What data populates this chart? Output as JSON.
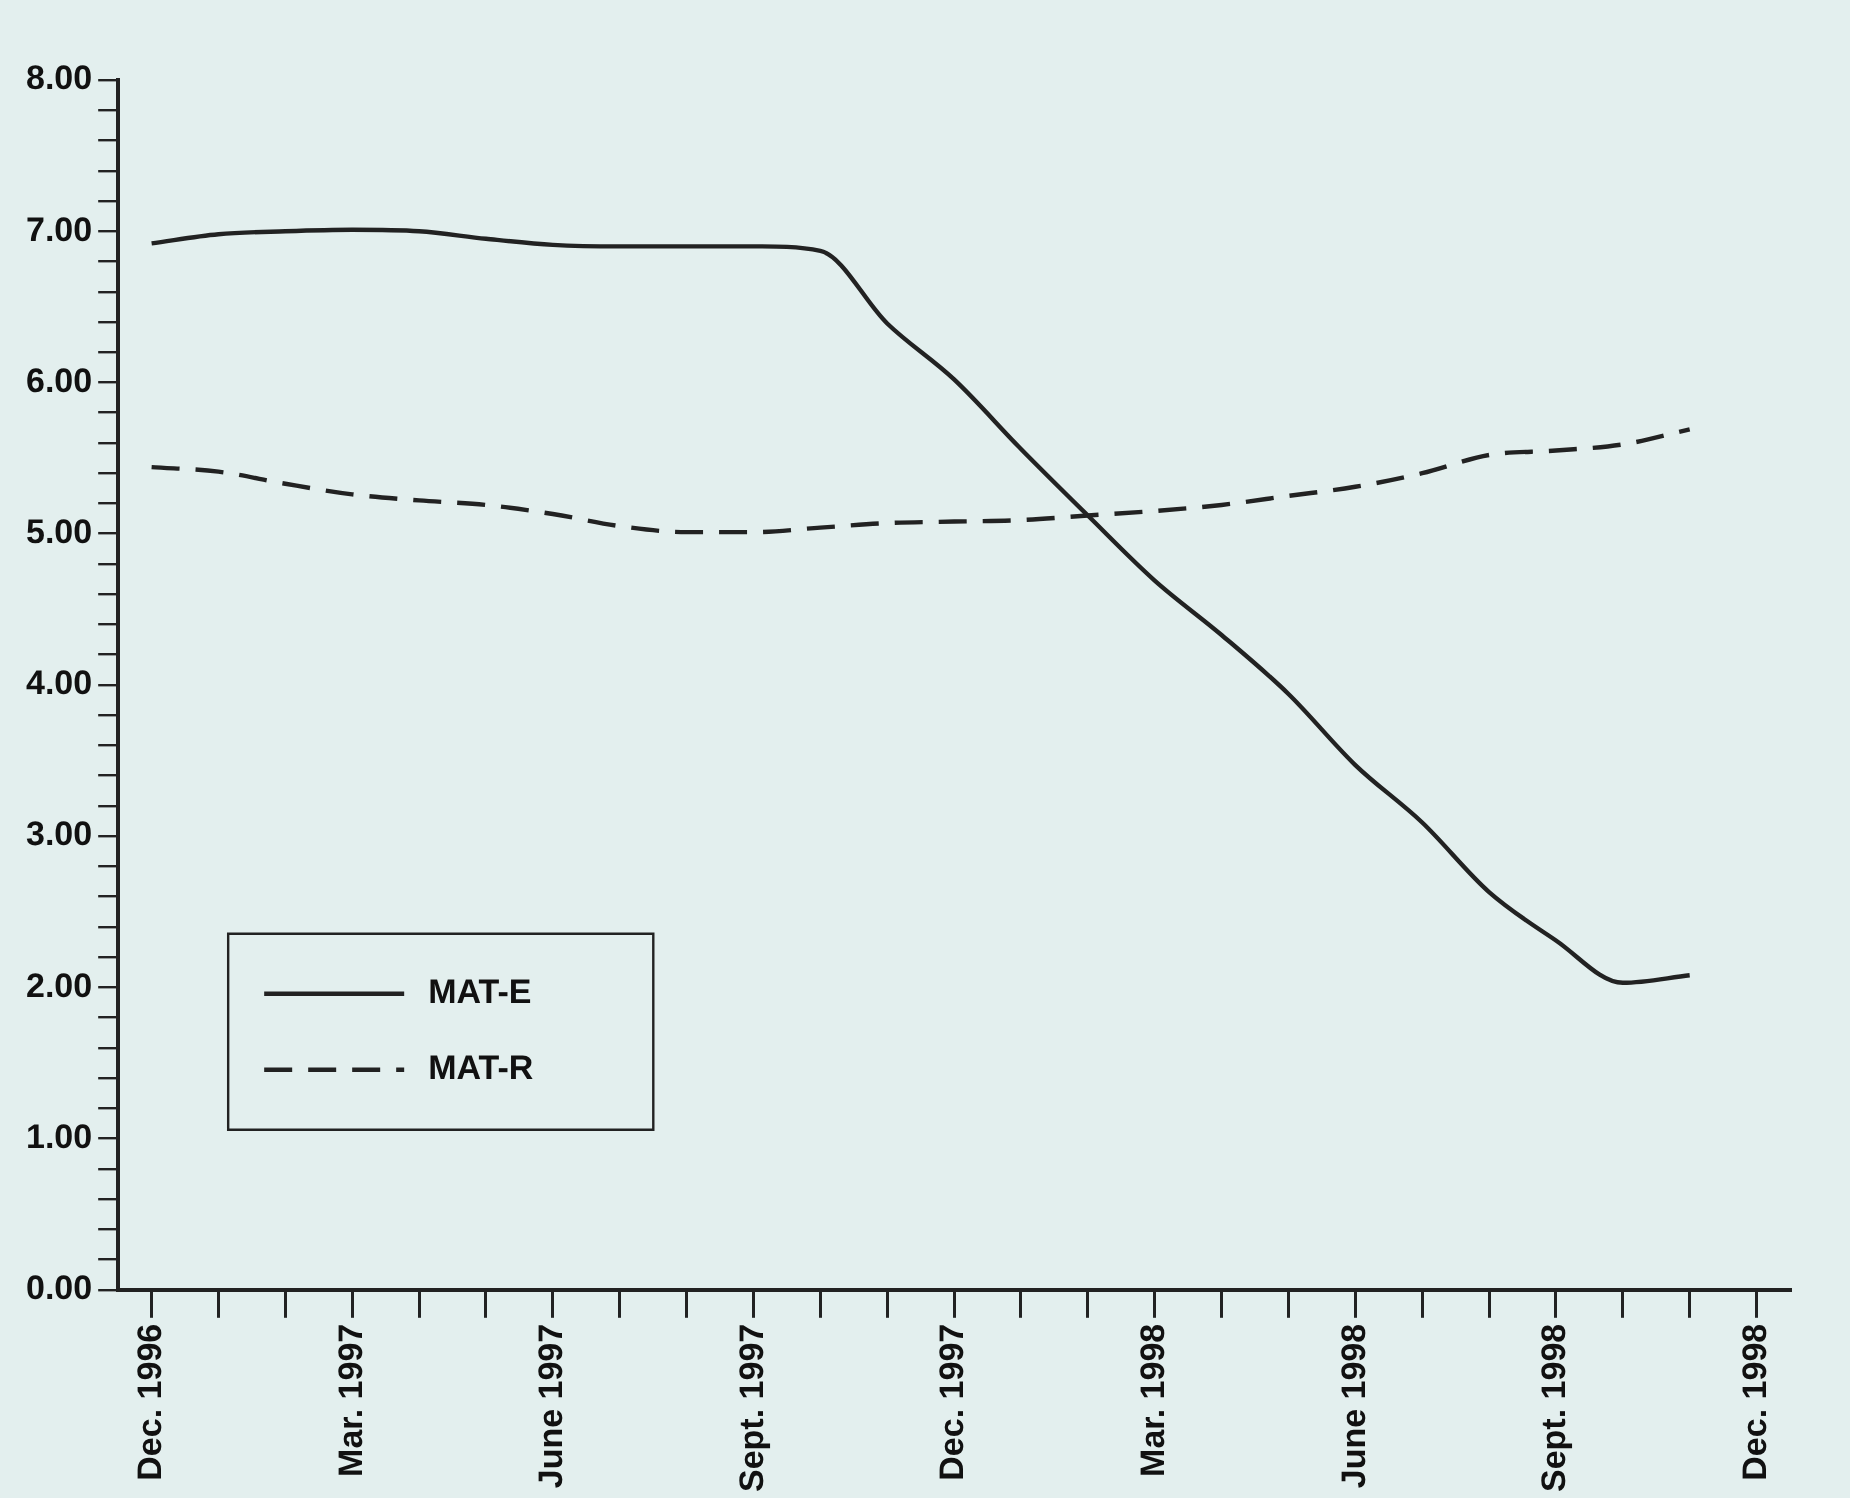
{
  "chart_data": {
    "type": "line",
    "categories": [
      "Dec. 1996",
      null,
      null,
      "Mar. 1997",
      null,
      null,
      "June 1997",
      null,
      null,
      "Sept. 1997",
      null,
      null,
      "Dec. 1997",
      null,
      null,
      "Mar. 1998",
      null,
      null,
      "June 1998",
      null,
      null,
      "Sept. 1998",
      null,
      null,
      "Dec. 1998"
    ],
    "series": [
      {
        "name": "MAT-E",
        "color": "#222222",
        "line_style": "solid",
        "values": [
          6.92,
          6.98,
          7.0,
          7.01,
          7.0,
          6.95,
          6.91,
          6.9,
          6.9,
          6.9,
          6.87,
          6.39,
          6.02,
          5.56,
          5.12,
          4.69,
          4.33,
          3.94,
          3.47,
          3.09,
          2.63,
          2.31,
          2.03,
          2.08,
          null
        ]
      },
      {
        "name": "MAT-R",
        "color": "#222222",
        "line_style": "dashed",
        "values": [
          5.44,
          5.41,
          5.33,
          5.26,
          5.22,
          5.19,
          5.13,
          5.05,
          5.01,
          5.01,
          5.04,
          5.07,
          5.08,
          5.09,
          5.12,
          5.15,
          5.19,
          5.25,
          5.31,
          5.4,
          5.52,
          5.55,
          5.59,
          5.69,
          null
        ]
      }
    ],
    "ylim": [
      0,
      8
    ],
    "yticks": [
      {
        "value": 0,
        "label": "0.00"
      },
      {
        "value": 0.2,
        "label": null
      },
      {
        "value": 0.4,
        "label": null
      },
      {
        "value": 0.6,
        "label": null
      },
      {
        "value": 0.8,
        "label": null
      },
      {
        "value": 1,
        "label": "1.00"
      },
      {
        "value": 1.2,
        "label": null
      },
      {
        "value": 1.4,
        "label": null
      },
      {
        "value": 1.6,
        "label": null
      },
      {
        "value": 1.8,
        "label": null
      },
      {
        "value": 2,
        "label": "2.00"
      },
      {
        "value": 2.2,
        "label": null
      },
      {
        "value": 2.4,
        "label": null
      },
      {
        "value": 2.6,
        "label": null
      },
      {
        "value": 2.8,
        "label": null
      },
      {
        "value": 3,
        "label": "3.00"
      },
      {
        "value": 3.2,
        "label": null
      },
      {
        "value": 3.4,
        "label": null
      },
      {
        "value": 3.6,
        "label": null
      },
      {
        "value": 3.8,
        "label": null
      },
      {
        "value": 4,
        "label": "4.00"
      },
      {
        "value": 4.2,
        "label": null
      },
      {
        "value": 4.4,
        "label": null
      },
      {
        "value": 4.6,
        "label": null
      },
      {
        "value": 4.8,
        "label": null
      },
      {
        "value": 5,
        "label": "5.00"
      },
      {
        "value": 5.2,
        "label": null
      },
      {
        "value": 5.4,
        "label": null
      },
      {
        "value": 5.6,
        "label": null
      },
      {
        "value": 5.8,
        "label": null
      },
      {
        "value": 6,
        "label": "6.00"
      },
      {
        "value": 6.2,
        "label": null
      },
      {
        "value": 6.4,
        "label": null
      },
      {
        "value": 6.6,
        "label": null
      },
      {
        "value": 6.8,
        "label": null
      },
      {
        "value": 7,
        "label": "7.00"
      },
      {
        "value": 7.2,
        "label": null
      },
      {
        "value": 7.4,
        "label": null
      },
      {
        "value": 7.6,
        "label": null
      },
      {
        "value": 7.8,
        "label": null
      },
      {
        "value": 8,
        "label": "8.00"
      }
    ],
    "grid": false,
    "legend": "bottom left",
    "marker": "none"
  }
}
